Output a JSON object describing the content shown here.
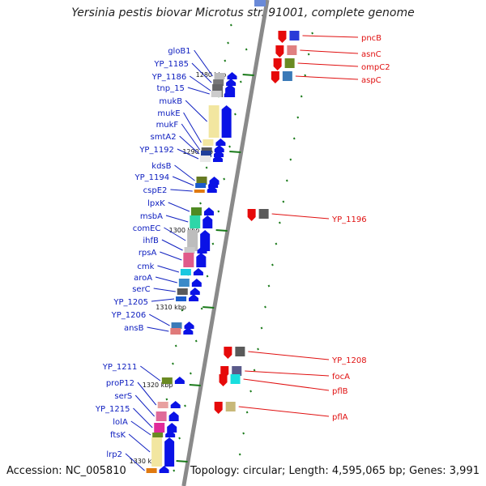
{
  "title": "Yersinia pestis biovar Microtus str. 91001, complete genome",
  "accession": "Accession: NC_005810",
  "summary": "Topology: circular; Length: 4,595,065 bp; Genes: 3,991",
  "colors": {
    "backbone": "#8a8a8a",
    "forward_gene": "#0a12e6",
    "reverse_gene": "#e60a0a",
    "tick": "#1a7a1a",
    "label_left": "#1020c0",
    "label_right": "#e01010"
  },
  "scale_labels": [
    "1280 kbp",
    "1290 kbp",
    "1300 kbp",
    "1310 kbp",
    "1320 kbp",
    "1330 kbp"
  ],
  "left_genes": [
    "gloB1",
    "YP_1185",
    "YP_1186",
    "tnp_15",
    "mukB",
    "mukE",
    "mukF",
    "smtA2",
    "YP_1192",
    "kdsB",
    "YP_1194",
    "cspE2",
    "lpxK",
    "msbA",
    "comEC",
    "ihfB",
    "rpsA",
    "cmk",
    "aroA",
    "serC",
    "YP_1205",
    "YP_1206",
    "ansB",
    "YP_1211",
    "proP12",
    "serS",
    "YP_1215",
    "lolA",
    "ftsK",
    "lrp2"
  ],
  "right_genes": [
    "pncB",
    "asnC",
    "ompC2",
    "aspC",
    "YP_1196",
    "YP_1208",
    "focA",
    "pflB",
    "pflA"
  ]
}
